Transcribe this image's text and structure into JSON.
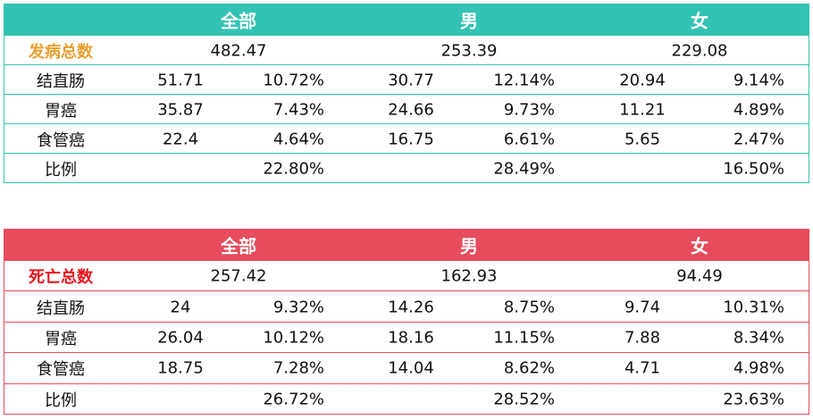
{
  "tables": [
    {
      "header": [
        "全部",
        "男",
        "女"
      ],
      "total": {
        "label": "发病总数",
        "values": [
          "482.47",
          "253.39",
          "229.08"
        ]
      },
      "rows": [
        {
          "label": "结直肠",
          "cells": [
            "51.71",
            "10.72%",
            "30.77",
            "12.14%",
            "20.94",
            "9.14%"
          ]
        },
        {
          "label": "胃癌",
          "cells": [
            "35.87",
            "7.43%",
            "24.66",
            "9.73%",
            "11.21",
            "4.89%"
          ]
        },
        {
          "label": "食管癌",
          "cells": [
            "22.4",
            "4.64%",
            "16.75",
            "6.61%",
            "5.65",
            "2.47%"
          ]
        }
      ],
      "ratio": {
        "label": "比例",
        "values": [
          "22.80%",
          "28.49%",
          "16.50%"
        ]
      }
    },
    {
      "header": [
        "全部",
        "男",
        "女"
      ],
      "total": {
        "label": "死亡总数",
        "values": [
          "257.42",
          "162.93",
          "94.49"
        ]
      },
      "rows": [
        {
          "label": "结直肠",
          "cells": [
            "24",
            "9.32%",
            "14.26",
            "8.75%",
            "9.74",
            "10.31%"
          ]
        },
        {
          "label": "胃癌",
          "cells": [
            "26.04",
            "10.12%",
            "18.16",
            "11.15%",
            "7.88",
            "8.34%"
          ]
        },
        {
          "label": "食管癌",
          "cells": [
            "18.75",
            "7.28%",
            "14.04",
            "8.62%",
            "4.71",
            "4.98%"
          ]
        }
      ],
      "ratio": {
        "label": "比例",
        "values": [
          "26.72%",
          "28.52%",
          "23.63%"
        ]
      }
    }
  ]
}
